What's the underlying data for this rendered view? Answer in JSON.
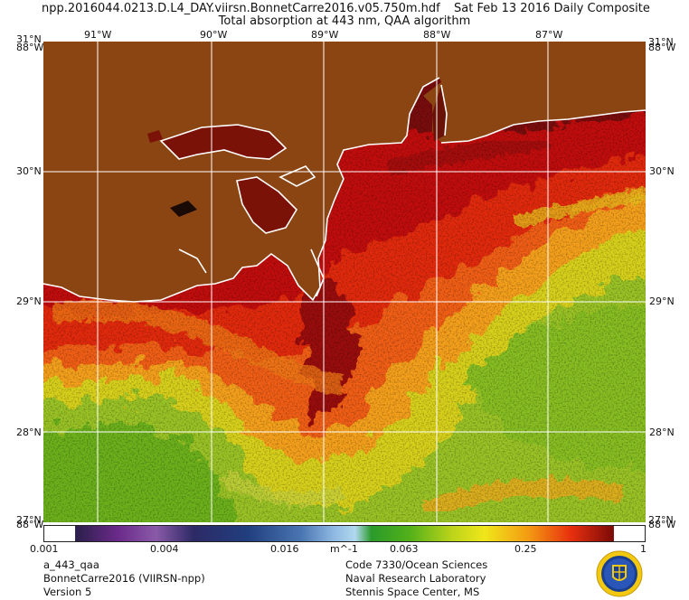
{
  "header": {
    "file_name": "npp.2016044.0213.D.L4_DAY.viirsn.BonnetCarre2016.v05.750m.hdf",
    "date": "Sat Feb 13 2016 Daily Composite",
    "product_title": "Total absorption at 443 nm, QAA algorithm"
  },
  "axes": {
    "longitude_labels": [
      "91°W",
      "90°W",
      "89°W",
      "88°W",
      "87°W"
    ],
    "latitude_labels": [
      "31°N",
      "30°N",
      "29°N",
      "28°N"
    ],
    "corner_lat_top": "31°N",
    "corner_lon_top": "88°W",
    "corner_lat_bottom": "27°N",
    "corner_lon_bottom": "88°W"
  },
  "colorbar": {
    "ticks": [
      "0.001",
      "0.004",
      "0.016",
      "m^-1",
      "0.063",
      "0.25",
      "1"
    ],
    "scale": "log",
    "range": [
      0.001,
      1
    ]
  },
  "footer": {
    "product": "a_443_qaa",
    "region": "BonnetCarre2016 (VIIRSN-npp)",
    "version": "Version 5",
    "org_code": "Code 7330/Ocean Sciences",
    "org_lab": "Naval Research Laboratory",
    "org_place": "Stennis Space Center, MS"
  },
  "colors": {
    "land": "#8b4513",
    "coastline": "#ffffff",
    "grid": "#ffffff",
    "high_absorption": "#8b0a0a",
    "low_absorption": "#5fa81a"
  }
}
